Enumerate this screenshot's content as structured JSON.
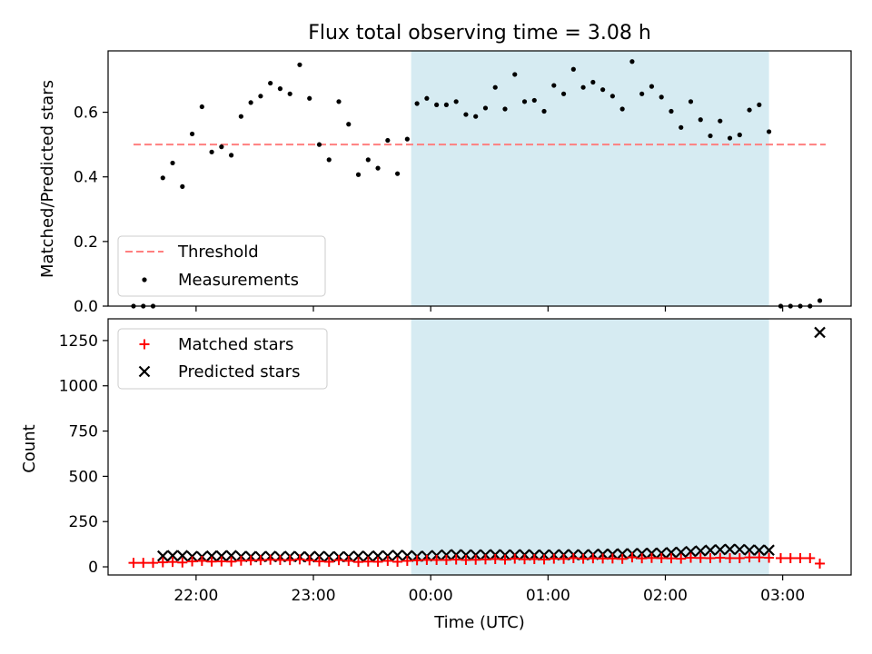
{
  "figure_title": "Flux total observing time = 3.08 h",
  "colors": {
    "shade": "#add8e6",
    "threshold": "#ff7f7f",
    "measurement": "#000000",
    "matched": "#ff0000",
    "predicted": "#000000"
  },
  "chart_data": [
    {
      "type": "scatter",
      "title": "Flux total observing time = 3.08 h",
      "xlabel": "",
      "ylabel": "Matched/Predicted stars",
      "xlim": [
        "21:15",
        "03:35"
      ],
      "ylim": [
        0,
        0.79
      ],
      "yticks": [
        0.0,
        0.2,
        0.4,
        0.6
      ],
      "ytick_labels": [
        "0.0",
        "0.2",
        "0.4",
        "0.6"
      ],
      "shaded_region": {
        "x": [
          "23:50",
          "02:53"
        ]
      },
      "legend": {
        "position": "lower-left",
        "entries": [
          "Threshold",
          "Measurements"
        ]
      },
      "threshold": {
        "name": "Threshold",
        "y": 0.5,
        "x": [
          "21:28",
          "03:22"
        ],
        "style": "dashed"
      },
      "measurements": {
        "name": "Measurements",
        "points": [
          [
            "21:28",
            0.0
          ],
          [
            "21:33",
            0.0
          ],
          [
            "21:38",
            0.0
          ],
          [
            "21:43",
            0.397
          ],
          [
            "21:48",
            0.443
          ],
          [
            "21:53",
            0.37
          ],
          [
            "21:58",
            0.533
          ],
          [
            "22:03",
            0.617
          ],
          [
            "22:08",
            0.477
          ],
          [
            "22:13",
            0.493
          ],
          [
            "22:18",
            0.467
          ],
          [
            "22:23",
            0.587
          ],
          [
            "22:28",
            0.63
          ],
          [
            "22:33",
            0.65
          ],
          [
            "22:38",
            0.69
          ],
          [
            "22:43",
            0.673
          ],
          [
            "22:48",
            0.657
          ],
          [
            "22:53",
            0.747
          ],
          [
            "22:58",
            0.643
          ],
          [
            "23:03",
            0.5
          ],
          [
            "23:08",
            0.453
          ],
          [
            "23:13",
            0.633
          ],
          [
            "23:18",
            0.563
          ],
          [
            "23:23",
            0.407
          ],
          [
            "23:28",
            0.453
          ],
          [
            "23:33",
            0.427
          ],
          [
            "23:38",
            0.513
          ],
          [
            "23:43",
            0.41
          ],
          [
            "23:48",
            0.517
          ],
          [
            "23:53",
            0.627
          ],
          [
            "23:58",
            0.643
          ],
          [
            "00:03",
            0.623
          ],
          [
            "00:08",
            0.623
          ],
          [
            "00:13",
            0.633
          ],
          [
            "00:18",
            0.593
          ],
          [
            "00:23",
            0.587
          ],
          [
            "00:28",
            0.613
          ],
          [
            "00:33",
            0.677
          ],
          [
            "00:38",
            0.61
          ],
          [
            "00:43",
            0.717
          ],
          [
            "00:48",
            0.633
          ],
          [
            "00:53",
            0.637
          ],
          [
            "00:58",
            0.603
          ],
          [
            "01:03",
            0.683
          ],
          [
            "01:08",
            0.657
          ],
          [
            "01:13",
            0.733
          ],
          [
            "01:18",
            0.677
          ],
          [
            "01:23",
            0.693
          ],
          [
            "01:28",
            0.67
          ],
          [
            "01:33",
            0.65
          ],
          [
            "01:38",
            0.61
          ],
          [
            "01:43",
            0.757
          ],
          [
            "01:48",
            0.657
          ],
          [
            "01:53",
            0.68
          ],
          [
            "01:58",
            0.647
          ],
          [
            "02:03",
            0.603
          ],
          [
            "02:08",
            0.553
          ],
          [
            "02:13",
            0.633
          ],
          [
            "02:18",
            0.577
          ],
          [
            "02:23",
            0.527
          ],
          [
            "02:28",
            0.573
          ],
          [
            "02:33",
            0.52
          ],
          [
            "02:38",
            0.53
          ],
          [
            "02:43",
            0.607
          ],
          [
            "02:48",
            0.623
          ],
          [
            "02:53",
            0.54
          ],
          [
            "02:59",
            0.0
          ],
          [
            "03:04",
            0.0
          ],
          [
            "03:09",
            0.0
          ],
          [
            "03:14",
            0.0
          ],
          [
            "03:19",
            0.017
          ]
        ]
      }
    },
    {
      "type": "scatter",
      "title": "",
      "xlabel": "Time (UTC)",
      "ylabel": "Count",
      "xlim": [
        "21:15",
        "03:35"
      ],
      "ylim": [
        -45,
        1370
      ],
      "yticks": [
        0,
        250,
        500,
        750,
        1000,
        1250
      ],
      "ytick_labels": [
        "0",
        "250",
        "500",
        "750",
        "1000",
        "1250"
      ],
      "xticks": [
        "22:00",
        "23:00",
        "00:00",
        "01:00",
        "02:00",
        "03:00"
      ],
      "xtick_labels": [
        "22:00",
        "23:00",
        "00:00",
        "01:00",
        "02:00",
        "03:00"
      ],
      "shaded_region": {
        "x": [
          "23:50",
          "02:53"
        ]
      },
      "legend": {
        "position": "top-left",
        "entries": [
          "Matched stars",
          "Predicted stars"
        ]
      },
      "series": [
        {
          "name": "Matched stars",
          "marker": "plus",
          "x": [
            "21:28",
            "21:33",
            "21:38",
            "21:43",
            "21:48",
            "21:53",
            "21:58",
            "22:03",
            "22:08",
            "22:13",
            "22:18",
            "22:23",
            "22:28",
            "22:33",
            "22:38",
            "22:43",
            "22:48",
            "22:53",
            "22:58",
            "23:03",
            "23:08",
            "23:13",
            "23:18",
            "23:23",
            "23:28",
            "23:33",
            "23:38",
            "23:43",
            "23:48",
            "23:53",
            "23:58",
            "00:03",
            "00:08",
            "00:13",
            "00:18",
            "00:23",
            "00:28",
            "00:33",
            "00:38",
            "00:43",
            "00:48",
            "00:53",
            "00:58",
            "01:03",
            "01:08",
            "01:13",
            "01:18",
            "01:23",
            "01:28",
            "01:33",
            "01:38",
            "01:43",
            "01:48",
            "01:53",
            "01:58",
            "02:03",
            "02:08",
            "02:13",
            "02:18",
            "02:23",
            "02:28",
            "02:33",
            "02:38",
            "02:43",
            "02:48",
            "02:53",
            "02:59",
            "03:04",
            "03:09",
            "03:14",
            "03:19"
          ],
          "values": [
            22,
            22,
            22,
            25,
            27,
            24,
            30,
            33,
            29,
            30,
            29,
            34,
            36,
            37,
            39,
            38,
            37,
            41,
            36,
            30,
            28,
            37,
            33,
            27,
            29,
            28,
            33,
            28,
            33,
            36,
            38,
            38,
            38,
            40,
            38,
            39,
            41,
            43,
            40,
            45,
            42,
            43,
            41,
            45,
            44,
            48,
            45,
            47,
            46,
            46,
            44,
            52,
            47,
            49,
            48,
            47,
            45,
            50,
            49,
            48,
            50,
            48,
            48,
            52,
            52,
            50,
            48,
            48,
            48,
            48,
            18
          ]
        },
        {
          "name": "Predicted stars",
          "marker": "x",
          "x": [
            "21:43",
            "21:48",
            "21:53",
            "21:58",
            "22:03",
            "22:08",
            "22:13",
            "22:18",
            "22:23",
            "22:28",
            "22:33",
            "22:38",
            "22:43",
            "22:48",
            "22:53",
            "22:58",
            "23:03",
            "23:08",
            "23:13",
            "23:18",
            "23:23",
            "23:28",
            "23:33",
            "23:38",
            "23:43",
            "23:48",
            "23:53",
            "23:58",
            "00:03",
            "00:08",
            "00:13",
            "00:18",
            "00:23",
            "00:28",
            "00:33",
            "00:38",
            "00:43",
            "00:48",
            "00:53",
            "00:58",
            "01:03",
            "01:08",
            "01:13",
            "01:18",
            "01:23",
            "01:28",
            "01:33",
            "01:38",
            "01:43",
            "01:48",
            "01:53",
            "01:58",
            "02:03",
            "02:08",
            "02:13",
            "02:18",
            "02:23",
            "02:28",
            "02:33",
            "02:38",
            "02:43",
            "02:48",
            "02:53",
            "03:19"
          ],
          "values": [
            60,
            62,
            62,
            58,
            56,
            60,
            60,
            62,
            58,
            57,
            56,
            58,
            56,
            58,
            56,
            55,
            58,
            56,
            56,
            56,
            59,
            58,
            60,
            61,
            64,
            62,
            58,
            59,
            63,
            66,
            67,
            66,
            66,
            66,
            67,
            66,
            66,
            67,
            65,
            66,
            66,
            67,
            67,
            66,
            68,
            70,
            70,
            72,
            73,
            74,
            75,
            76,
            79,
            81,
            85,
            88,
            92,
            95,
            97,
            96,
            93,
            92,
            92,
            1295
          ]
        }
      ]
    }
  ]
}
